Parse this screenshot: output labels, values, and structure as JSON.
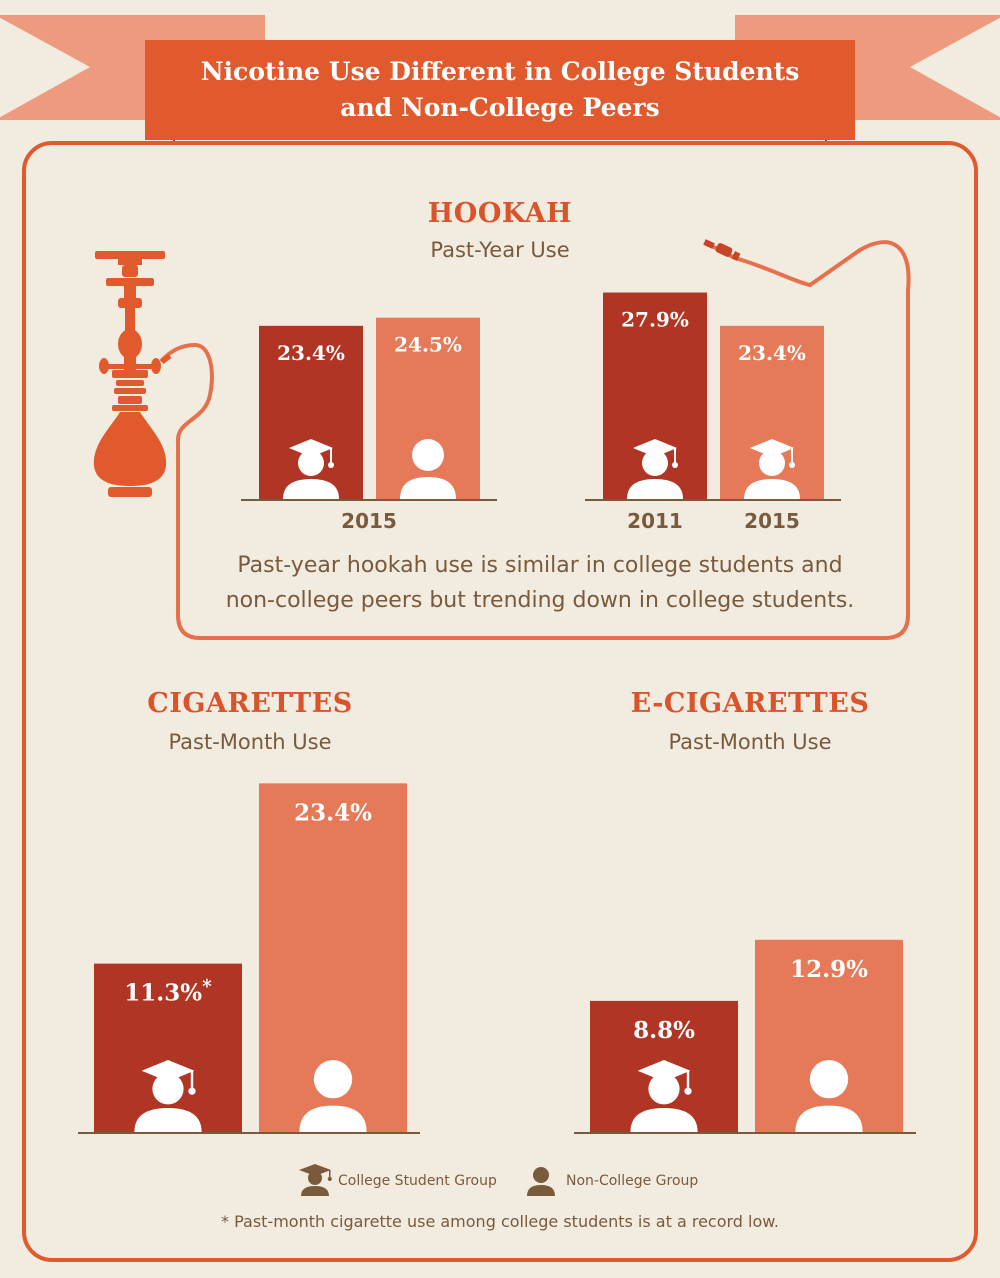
{
  "title_lines": [
    "Nicotine Use Different in College Students",
    "and Non-College Peers"
  ],
  "hookah": {
    "title": "HOOKAH",
    "subtitle": "Past-Year Use",
    "note_lines": [
      "Past-year hookah use is similar in college students and",
      "non-college peers but trending down in college students."
    ]
  },
  "cigarettes": {
    "title": "CIGARETTES",
    "subtitle": "Past-Month Use"
  },
  "ecigarettes": {
    "title": "E-CIGARETTES",
    "subtitle": "Past-Month Use"
  },
  "legend": {
    "college": "College Student Group",
    "noncollege": "Non-College Group"
  },
  "footnote": "* Past-month cigarette use among college students is at a record low.",
  "colors": {
    "college": "#b03524",
    "noncollege": "#e67a58",
    "accent": "#d9532b",
    "banner": "#e05a2e",
    "ribbon": "#ee9a7e",
    "text": "#7a5a3c",
    "background": "#f2ebdf"
  },
  "chart_data": [
    {
      "type": "bar",
      "title": "HOOKAH",
      "subtitle": "Past-Year Use",
      "categories": [
        "2015"
      ],
      "series": [
        {
          "name": "College Student Group",
          "values": [
            23.4
          ],
          "labels": [
            "23.4%"
          ],
          "icon": "graduate-icon"
        },
        {
          "name": "Non-College Group",
          "values": [
            24.5
          ],
          "labels": [
            "24.5%"
          ],
          "icon": "person-icon"
        }
      ],
      "unit": "%"
    },
    {
      "type": "bar",
      "title": "HOOKAH",
      "subtitle": "Past-Year Use",
      "categories": [
        "2011",
        "2015"
      ],
      "series": [
        {
          "name": "College Student Group",
          "values": [
            27.9,
            23.4
          ],
          "labels": [
            "27.9%",
            "23.4%"
          ],
          "icon": "graduate-icon"
        }
      ],
      "unit": "%"
    },
    {
      "type": "bar",
      "title": "CIGARETTES",
      "subtitle": "Past-Month Use",
      "series": [
        {
          "name": "College Student Group",
          "values": [
            11.3
          ],
          "labels": [
            "11.3%"
          ],
          "footnote_marker": "*",
          "icon": "graduate-icon"
        },
        {
          "name": "Non-College Group",
          "values": [
            23.4
          ],
          "labels": [
            "23.4%"
          ],
          "icon": "person-icon"
        }
      ],
      "unit": "%"
    },
    {
      "type": "bar",
      "title": "E-CIGARETTES",
      "subtitle": "Past-Month Use",
      "series": [
        {
          "name": "College Student Group",
          "values": [
            8.8
          ],
          "labels": [
            "8.8%"
          ],
          "icon": "graduate-icon"
        },
        {
          "name": "Non-College Group",
          "values": [
            12.9
          ],
          "labels": [
            "12.9%"
          ],
          "icon": "person-icon"
        }
      ],
      "unit": "%"
    }
  ]
}
